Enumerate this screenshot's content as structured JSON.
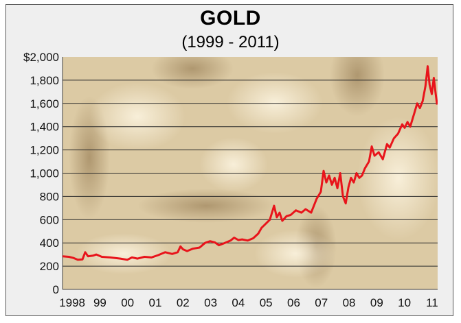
{
  "chart_data": {
    "type": "line",
    "title": "GOLD",
    "subtitle": "(1999 - 2011)",
    "xlabel": "",
    "ylabel": "",
    "xlim": [
      1997.65,
      2011.2
    ],
    "ylim": [
      0,
      2000
    ],
    "grid": true,
    "legend": "none",
    "line_color": "#e8141b",
    "background": "gold nugget photo",
    "yticks": [
      {
        "value": 0,
        "label": "0"
      },
      {
        "value": 200,
        "label": "200"
      },
      {
        "value": 400,
        "label": "400"
      },
      {
        "value": 600,
        "label": "600"
      },
      {
        "value": 800,
        "label": "800"
      },
      {
        "value": 1000,
        "label": "1,000"
      },
      {
        "value": 1200,
        "label": "1,200"
      },
      {
        "value": 1400,
        "label": "1,400"
      },
      {
        "value": 1600,
        "label": "1,600"
      },
      {
        "value": 1800,
        "label": "1,800"
      },
      {
        "value": 2000,
        "label": "$2,000"
      }
    ],
    "xticks": [
      {
        "value": 1998,
        "label": "1998"
      },
      {
        "value": 1999,
        "label": "99"
      },
      {
        "value": 2000,
        "label": "00"
      },
      {
        "value": 2001,
        "label": "01"
      },
      {
        "value": 2002,
        "label": "02"
      },
      {
        "value": 2003,
        "label": "03"
      },
      {
        "value": 2004,
        "label": "04"
      },
      {
        "value": 2005,
        "label": "05"
      },
      {
        "value": 2006,
        "label": "06"
      },
      {
        "value": 2007,
        "label": "07"
      },
      {
        "value": 2008,
        "label": "08"
      },
      {
        "value": 2009,
        "label": "09"
      },
      {
        "value": 2010,
        "label": "10"
      },
      {
        "value": 2011,
        "label": "11"
      }
    ],
    "series": [
      {
        "x": [
          1997.65,
          1997.88,
          1998.05,
          1998.2,
          1998.37,
          1998.47,
          1998.57,
          1998.75,
          1998.87,
          1999.07,
          1999.37,
          1999.74,
          1999.99,
          2000.16,
          2000.36,
          2000.61,
          2000.86,
          2001.11,
          2001.36,
          2001.61,
          2001.81,
          2001.91,
          2002.0,
          2002.15,
          2002.35,
          2002.6,
          2002.8,
          2002.98,
          2003.15,
          2003.3,
          2003.47,
          2003.72,
          2003.85,
          2004.0,
          2004.14,
          2004.34,
          2004.54,
          2004.72,
          2004.84,
          2004.97,
          2005.14,
          2005.29,
          2005.39,
          2005.49,
          2005.59,
          2005.74,
          2005.89,
          2006.08,
          2006.28,
          2006.43,
          2006.63,
          2006.83,
          2006.98,
          2007.08,
          2007.18,
          2007.28,
          2007.38,
          2007.48,
          2007.58,
          2007.68,
          2007.78,
          2007.88,
          2007.98,
          2008.07,
          2008.17,
          2008.27,
          2008.37,
          2008.47,
          2008.57,
          2008.72,
          2008.82,
          2008.92,
          2009.07,
          2009.22,
          2009.37,
          2009.47,
          2009.62,
          2009.77,
          2009.92,
          2010.01,
          2010.11,
          2010.21,
          2010.36,
          2010.46,
          2010.56,
          2010.66,
          2010.76,
          2010.84,
          2010.91,
          2010.99,
          2011.06,
          2011.13,
          2011.18
        ],
        "y": [
          285,
          280,
          270,
          255,
          258,
          320,
          285,
          290,
          300,
          280,
          275,
          265,
          255,
          275,
          265,
          280,
          275,
          295,
          320,
          305,
          320,
          370,
          345,
          330,
          350,
          360,
          400,
          415,
          405,
          380,
          395,
          420,
          445,
          425,
          430,
          420,
          440,
          480,
          530,
          560,
          600,
          720,
          620,
          660,
          590,
          630,
          640,
          680,
          660,
          690,
          660,
          780,
          840,
          1020,
          920,
          980,
          900,
          960,
          870,
          1000,
          800,
          740,
          880,
          960,
          920,
          1000,
          960,
          980,
          1040,
          1100,
          1230,
          1150,
          1180,
          1120,
          1250,
          1220,
          1300,
          1340,
          1420,
          1390,
          1440,
          1400,
          1520,
          1600,
          1560,
          1620,
          1750,
          1920,
          1760,
          1680,
          1820,
          1680,
          1590
        ]
      }
    ]
  }
}
